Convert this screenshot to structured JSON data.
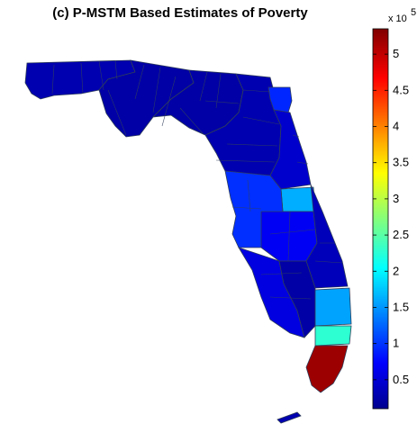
{
  "figure": {
    "title": "(c) P-MSTM Based Estimates of Poverty"
  },
  "colorbar": {
    "multiplier": "x 10",
    "exponent": "5",
    "min": 0.1,
    "max": 5.35,
    "ticks": [
      "0.5",
      "1",
      "1.5",
      "2",
      "2.5",
      "3",
      "3.5",
      "4",
      "4.5",
      "5"
    ],
    "tick_values": [
      0.5,
      1,
      1.5,
      2,
      2.5,
      3,
      3.5,
      4,
      4.5,
      5
    ],
    "colormap": "jet"
  },
  "map_regions": [
    {
      "name": "panhandle-west",
      "value": 0.35
    },
    {
      "name": "panhandle-central",
      "value": 0.3
    },
    {
      "name": "big-bend",
      "value": 0.3
    },
    {
      "name": "north-central",
      "value": 0.35
    },
    {
      "name": "jacksonville",
      "value": 0.95
    },
    {
      "name": "north-east-coast",
      "value": 0.5
    },
    {
      "name": "orlando",
      "value": 1.65
    },
    {
      "name": "tampa-area",
      "value": 1.0
    },
    {
      "name": "polk",
      "value": 0.7
    },
    {
      "name": "east-central-coast",
      "value": 0.4
    },
    {
      "name": "south-west",
      "value": 0.6
    },
    {
      "name": "south-central",
      "value": 0.3
    },
    {
      "name": "palm-beach",
      "value": 1.6
    },
    {
      "name": "broward",
      "value": 2.3
    },
    {
      "name": "miami-dade",
      "value": 5.2
    },
    {
      "name": "keys",
      "value": 0.35
    }
  ]
}
